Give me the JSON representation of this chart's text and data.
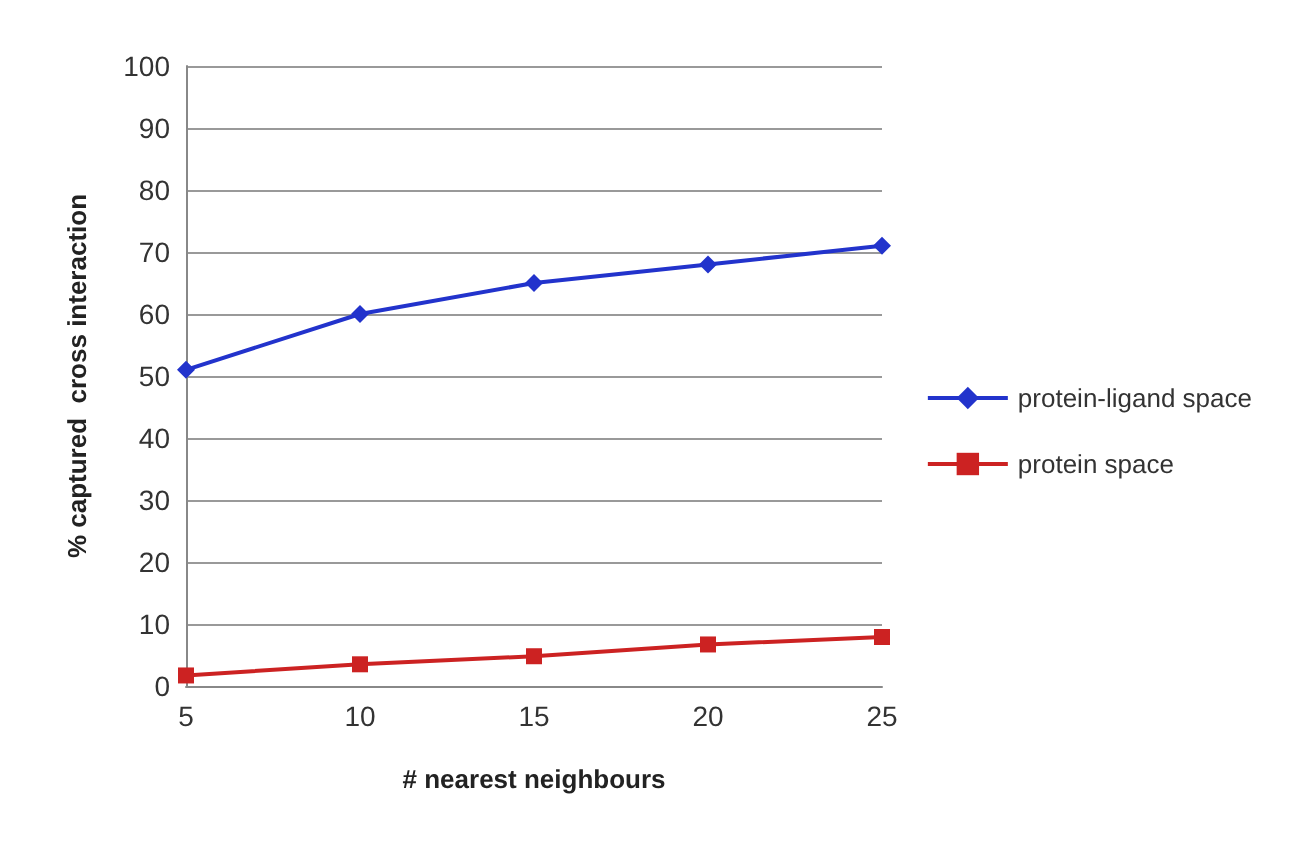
{
  "chart_data": {
    "type": "line",
    "xlabel": "# nearest neighbours",
    "ylabel": "% captured  cross interaction",
    "categories": [
      "5",
      "10",
      "15",
      "20",
      "25"
    ],
    "series": [
      {
        "name": "protein-ligand space",
        "color": "#2233cc",
        "marker": "diamond",
        "values": [
          51,
          60,
          65,
          68,
          71
        ]
      },
      {
        "name": "protein space",
        "color": "#cc2222",
        "marker": "square",
        "values": [
          1.7,
          3.5,
          4.8,
          6.7,
          7.9
        ]
      }
    ],
    "ylim": [
      0,
      100
    ],
    "yticks": [
      0,
      10,
      20,
      30,
      40,
      50,
      60,
      70,
      80,
      90,
      100
    ],
    "grid": "y",
    "legend": "right"
  }
}
